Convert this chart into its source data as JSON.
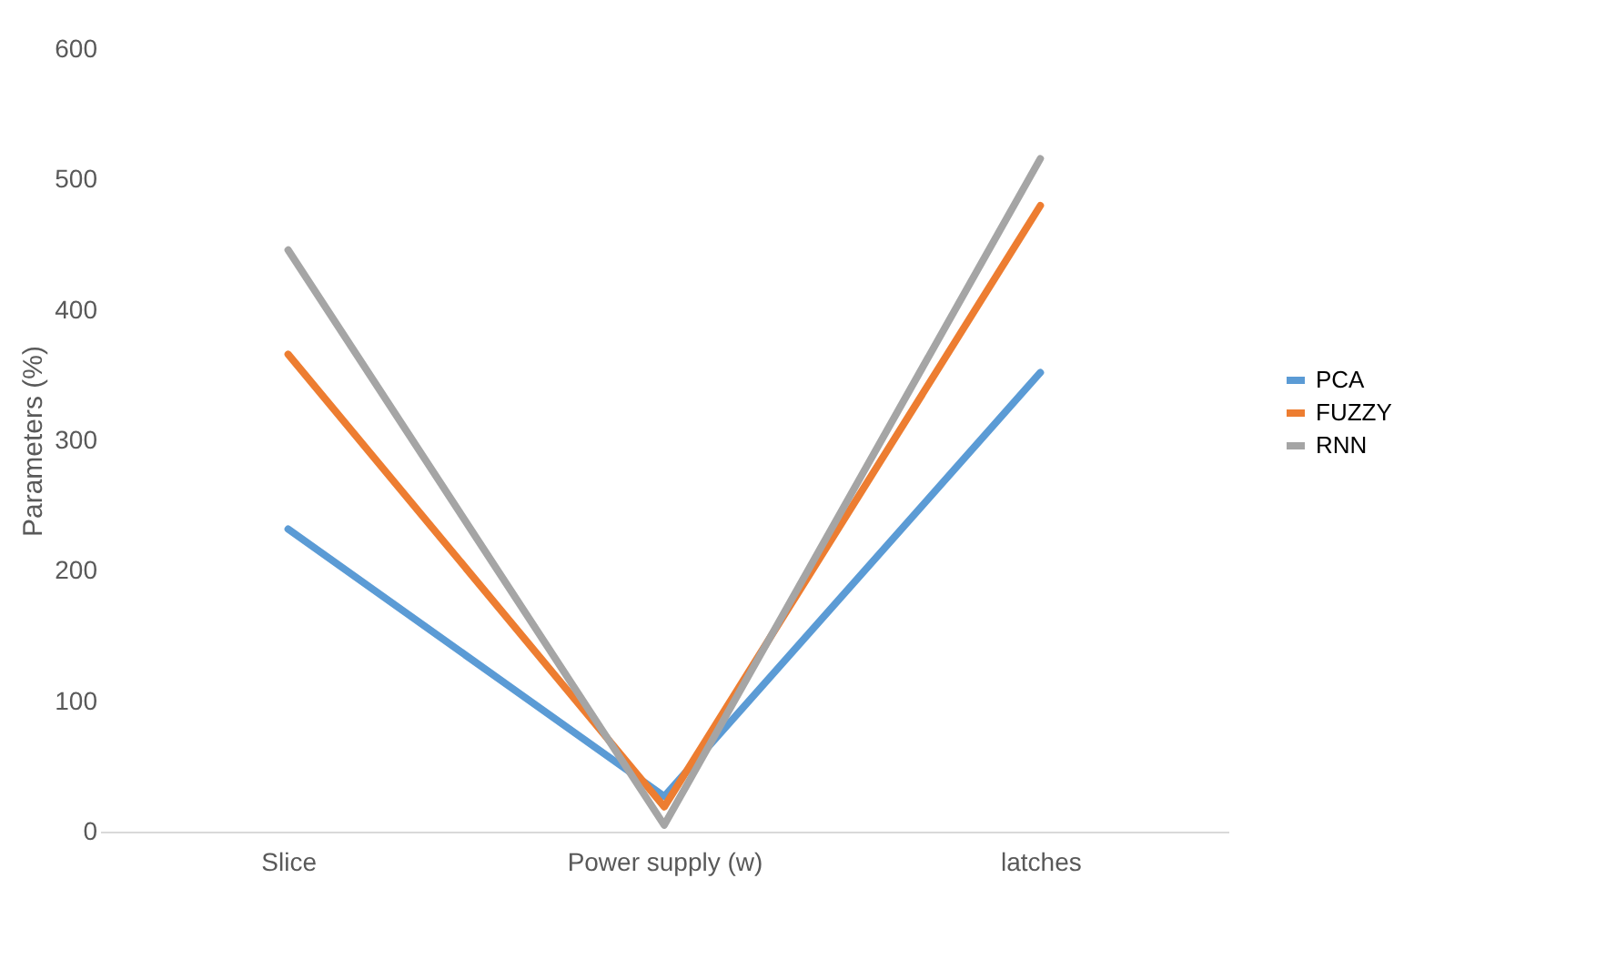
{
  "chart_data": {
    "type": "line",
    "ylabel": "Parameters (%)",
    "categories": [
      "Slice",
      "Power supply (w)",
      "latches"
    ],
    "series": [
      {
        "name": "PCA",
        "color": "#5b9bd5",
        "values": [
          232,
          27,
          352
        ]
      },
      {
        "name": "FUZZY",
        "color": "#ed7d31",
        "values": [
          366,
          19,
          480
        ]
      },
      {
        "name": "RNN",
        "color": "#a5a5a5",
        "values": [
          446,
          5,
          516
        ]
      }
    ],
    "ylim": [
      0,
      600
    ],
    "yticks": [
      0,
      100,
      200,
      300,
      400,
      500,
      600
    ],
    "grid": false,
    "legend": "right",
    "marker": "none",
    "line_style": "solid"
  }
}
